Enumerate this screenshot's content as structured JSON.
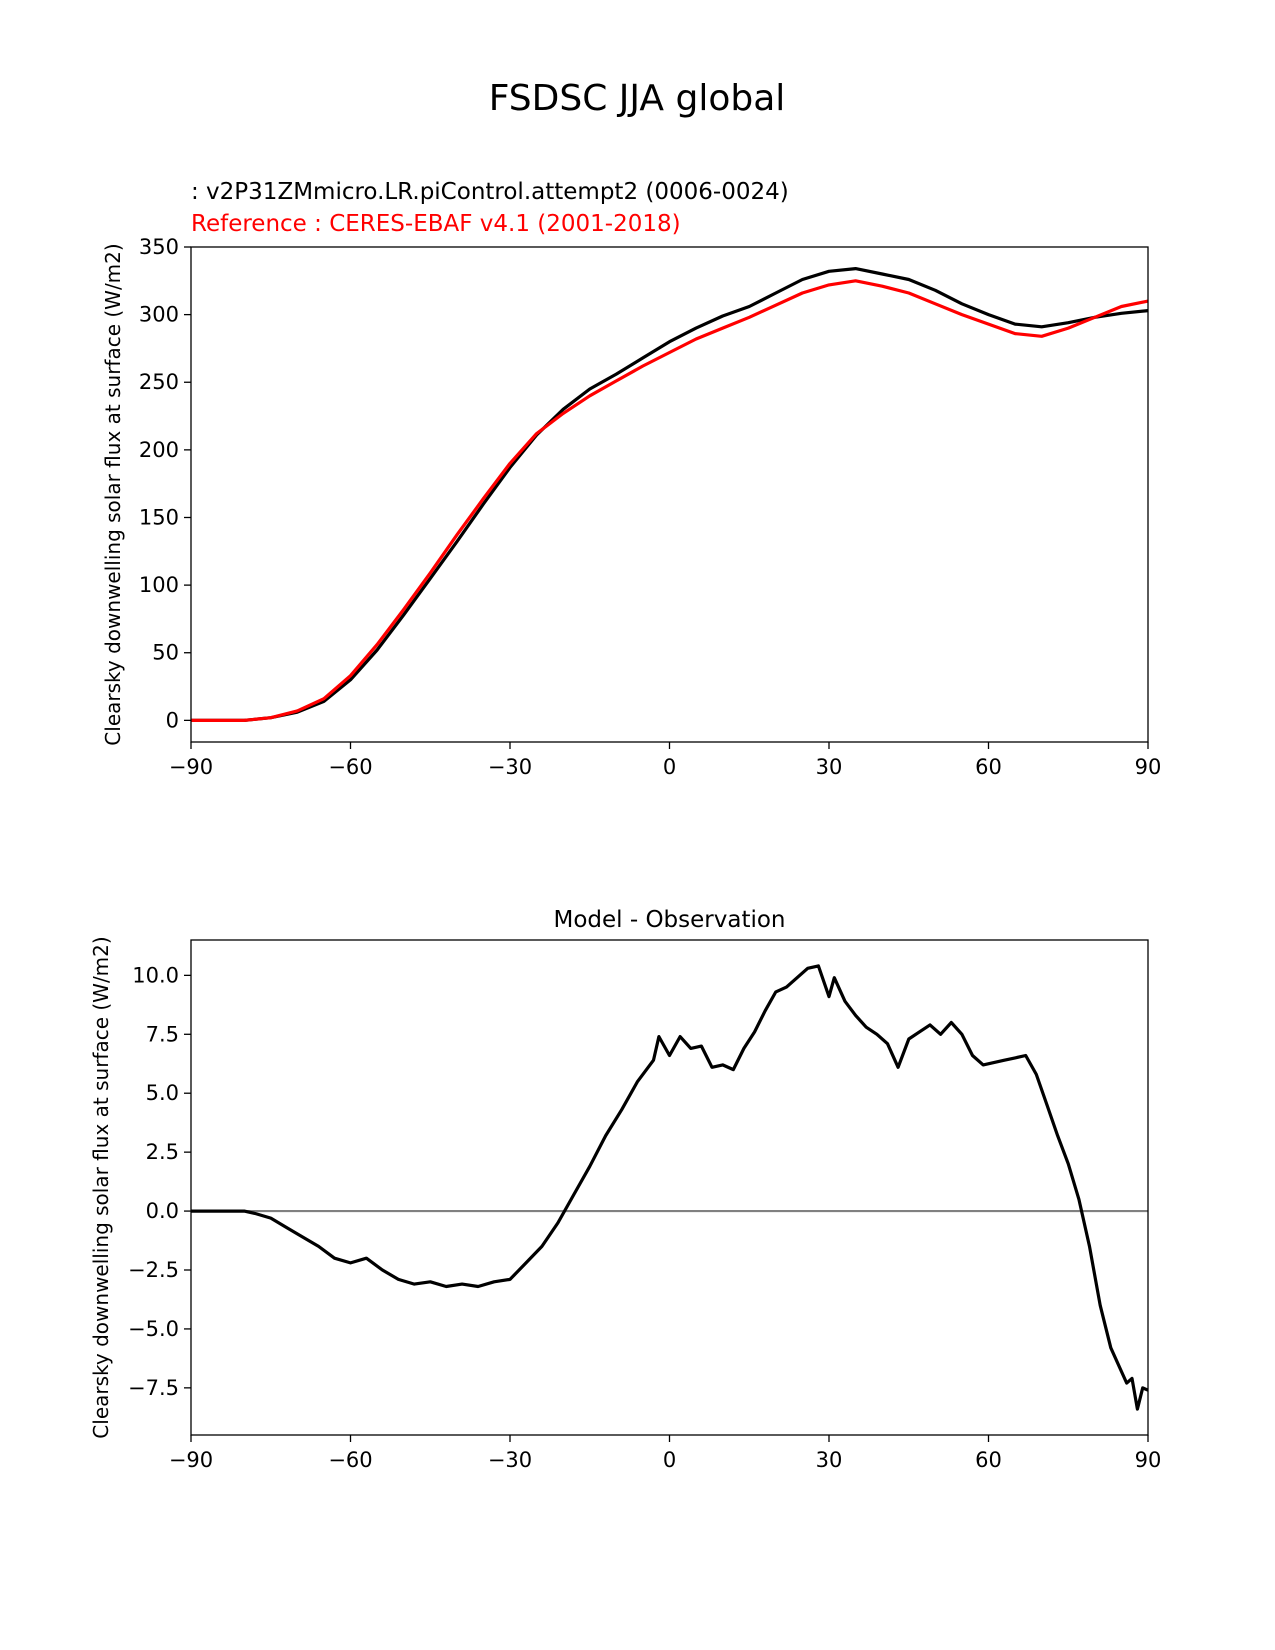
{
  "figure": {
    "suptitle": "FSDSC JJA global",
    "test_label": " : v2P31ZMmicro.LR.piControl.attempt2 (0006-0024)",
    "ref_label": "Reference : CERES-EBAF v4.1 (2001-2018)"
  },
  "colors": {
    "test": "#000000",
    "reference": "#ff0000",
    "zero_line": "#808080"
  },
  "chart_data": [
    {
      "type": "line",
      "title": "",
      "xlabel": "",
      "ylabel": "Clearsky downwelling solar flux at surface (W/m2)",
      "xlim": [
        -90,
        90
      ],
      "ylim": [
        -16,
        350
      ],
      "xticks": [
        -90,
        -60,
        -30,
        0,
        30,
        60,
        90
      ],
      "xtick_labels": [
        "−90",
        "−60",
        "−30",
        "0",
        "30",
        "60",
        "90"
      ],
      "yticks": [
        0,
        50,
        100,
        150,
        200,
        250,
        300,
        350
      ],
      "ytick_labels": [
        "0",
        "50",
        "100",
        "150",
        "200",
        "250",
        "300",
        "350"
      ],
      "series": [
        {
          "name": "test",
          "color": "#000000",
          "points": [
            [
              -90,
              0
            ],
            [
              -80,
              0
            ],
            [
              -75,
              2
            ],
            [
              -70,
              6
            ],
            [
              -65,
              14
            ],
            [
              -60,
              30
            ],
            [
              -55,
              52
            ],
            [
              -50,
              78
            ],
            [
              -45,
              105
            ],
            [
              -40,
              132
            ],
            [
              -35,
              160
            ],
            [
              -30,
              187
            ],
            [
              -25,
              211
            ],
            [
              -20,
              230
            ],
            [
              -15,
              245
            ],
            [
              -10,
              256
            ],
            [
              -5,
              268
            ],
            [
              0,
              280
            ],
            [
              5,
              290
            ],
            [
              10,
              299
            ],
            [
              15,
              306
            ],
            [
              20,
              316
            ],
            [
              25,
              326
            ],
            [
              30,
              332
            ],
            [
              35,
              334
            ],
            [
              40,
              330
            ],
            [
              45,
              326
            ],
            [
              50,
              318
            ],
            [
              55,
              308
            ],
            [
              60,
              300
            ],
            [
              65,
              293
            ],
            [
              70,
              291
            ],
            [
              75,
              294
            ],
            [
              80,
              298
            ],
            [
              85,
              301
            ],
            [
              90,
              303
            ]
          ]
        },
        {
          "name": "reference",
          "color": "#ff0000",
          "points": [
            [
              -90,
              0
            ],
            [
              -80,
              0
            ],
            [
              -75,
              2
            ],
            [
              -70,
              7
            ],
            [
              -65,
              16
            ],
            [
              -60,
              33
            ],
            [
              -55,
              56
            ],
            [
              -50,
              82
            ],
            [
              -45,
              109
            ],
            [
              -40,
              137
            ],
            [
              -35,
              164
            ],
            [
              -30,
              190
            ],
            [
              -25,
              212
            ],
            [
              -20,
              227
            ],
            [
              -15,
              240
            ],
            [
              -10,
              251
            ],
            [
              -5,
              262
            ],
            [
              0,
              272
            ],
            [
              5,
              282
            ],
            [
              10,
              290
            ],
            [
              15,
              298
            ],
            [
              20,
              307
            ],
            [
              25,
              316
            ],
            [
              30,
              322
            ],
            [
              35,
              325
            ],
            [
              40,
              321
            ],
            [
              45,
              316
            ],
            [
              50,
              308
            ],
            [
              55,
              300
            ],
            [
              60,
              293
            ],
            [
              65,
              286
            ],
            [
              70,
              284
            ],
            [
              75,
              290
            ],
            [
              80,
              298
            ],
            [
              85,
              306
            ],
            [
              90,
              310
            ]
          ]
        }
      ]
    },
    {
      "type": "line",
      "title": "Model - Observation",
      "xlabel": "",
      "ylabel": "Clearsky downwelling solar flux at surface (W/m2)",
      "xlim": [
        -90,
        90
      ],
      "ylim": [
        -9.5,
        11.5
      ],
      "xticks": [
        -90,
        -60,
        -30,
        0,
        30,
        60,
        90
      ],
      "xtick_labels": [
        "−90",
        "−60",
        "−30",
        "0",
        "30",
        "60",
        "90"
      ],
      "yticks": [
        -7.5,
        -5.0,
        -2.5,
        0.0,
        2.5,
        5.0,
        7.5,
        10.0
      ],
      "ytick_labels": [
        "−7.5",
        "−5.0",
        "−2.5",
        "0.0",
        "2.5",
        "5.0",
        "7.5",
        "10.0"
      ],
      "zero_line": 0,
      "series": [
        {
          "name": "difference",
          "color": "#000000",
          "points": [
            [
              -90,
              0
            ],
            [
              -80,
              0
            ],
            [
              -78,
              -0.1
            ],
            [
              -75,
              -0.3
            ],
            [
              -72,
              -0.7
            ],
            [
              -69,
              -1.1
            ],
            [
              -66,
              -1.5
            ],
            [
              -63,
              -2.0
            ],
            [
              -60,
              -2.2
            ],
            [
              -57,
              -2.0
            ],
            [
              -54,
              -2.5
            ],
            [
              -51,
              -2.9
            ],
            [
              -48,
              -3.1
            ],
            [
              -45,
              -3.0
            ],
            [
              -42,
              -3.2
            ],
            [
              -39,
              -3.1
            ],
            [
              -36,
              -3.2
            ],
            [
              -33,
              -3.0
            ],
            [
              -30,
              -2.9
            ],
            [
              -27,
              -2.2
            ],
            [
              -24,
              -1.5
            ],
            [
              -21,
              -0.5
            ],
            [
              -18,
              0.7
            ],
            [
              -15,
              1.9
            ],
            [
              -12,
              3.2
            ],
            [
              -9,
              4.3
            ],
            [
              -6,
              5.5
            ],
            [
              -3,
              6.4
            ],
            [
              -2,
              7.4
            ],
            [
              0,
              6.6
            ],
            [
              2,
              7.4
            ],
            [
              4,
              6.9
            ],
            [
              6,
              7.0
            ],
            [
              8,
              6.1
            ],
            [
              10,
              6.2
            ],
            [
              12,
              6.0
            ],
            [
              14,
              6.9
            ],
            [
              16,
              7.6
            ],
            [
              18,
              8.5
            ],
            [
              20,
              9.3
            ],
            [
              22,
              9.5
            ],
            [
              24,
              9.9
            ],
            [
              26,
              10.3
            ],
            [
              28,
              10.4
            ],
            [
              30,
              9.1
            ],
            [
              31,
              9.9
            ],
            [
              33,
              8.9
            ],
            [
              35,
              8.3
            ],
            [
              37,
              7.8
            ],
            [
              39,
              7.5
            ],
            [
              41,
              7.1
            ],
            [
              43,
              6.1
            ],
            [
              45,
              7.3
            ],
            [
              47,
              7.6
            ],
            [
              49,
              7.9
            ],
            [
              51,
              7.5
            ],
            [
              53,
              8.0
            ],
            [
              55,
              7.5
            ],
            [
              57,
              6.6
            ],
            [
              59,
              6.2
            ],
            [
              61,
              6.3
            ],
            [
              63,
              6.4
            ],
            [
              65,
              6.5
            ],
            [
              67,
              6.6
            ],
            [
              69,
              5.8
            ],
            [
              71,
              4.5
            ],
            [
              73,
              3.2
            ],
            [
              75,
              2.0
            ],
            [
              77,
              0.5
            ],
            [
              79,
              -1.5
            ],
            [
              81,
              -4.0
            ],
            [
              83,
              -5.8
            ],
            [
              85,
              -6.8
            ],
            [
              86,
              -7.3
            ],
            [
              87,
              -7.1
            ],
            [
              88,
              -8.4
            ],
            [
              89,
              -7.5
            ],
            [
              90,
              -7.6
            ]
          ]
        }
      ]
    }
  ]
}
